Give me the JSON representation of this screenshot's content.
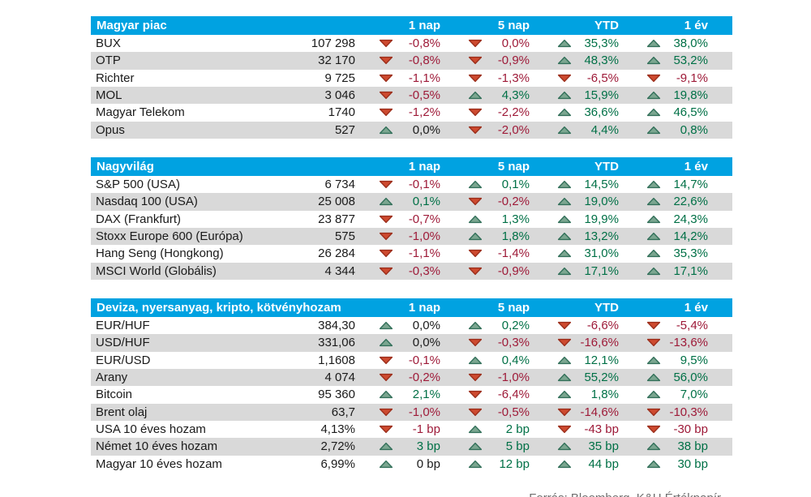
{
  "columns": [
    "1 nap",
    "5 nap",
    "YTD",
    "1 év"
  ],
  "colors": {
    "header_bg": "#00A2E1",
    "row_alt_bg": "#D9D9D9",
    "positive_text": "#007046",
    "negative_text": "#9E1A38",
    "neutral_text": "#1A1A1A",
    "triangle_up_fill": "#7BA690",
    "triangle_up_stroke": "#33705A",
    "triangle_down_fill": "#CE4A2F",
    "triangle_down_stroke": "#9C2E1B",
    "footer_text": "#6E6E6E"
  },
  "tables": [
    {
      "title": "Magyar piac",
      "rows": [
        {
          "name": "BUX",
          "value": "107 298",
          "changes": [
            {
              "dir": "down",
              "text": "-0,8%",
              "tone": "neg"
            },
            {
              "dir": "down",
              "text": "0,0%",
              "tone": "neg"
            },
            {
              "dir": "up",
              "text": "35,3%",
              "tone": "pos"
            },
            {
              "dir": "up",
              "text": "38,0%",
              "tone": "pos"
            }
          ]
        },
        {
          "name": "OTP",
          "value": "32 170",
          "changes": [
            {
              "dir": "down",
              "text": "-0,8%",
              "tone": "neg"
            },
            {
              "dir": "down",
              "text": "-0,9%",
              "tone": "neg"
            },
            {
              "dir": "up",
              "text": "48,3%",
              "tone": "pos"
            },
            {
              "dir": "up",
              "text": "53,2%",
              "tone": "pos"
            }
          ]
        },
        {
          "name": "Richter",
          "value": "9 725",
          "changes": [
            {
              "dir": "down",
              "text": "-1,1%",
              "tone": "neg"
            },
            {
              "dir": "down",
              "text": "-1,3%",
              "tone": "neg"
            },
            {
              "dir": "down",
              "text": "-6,5%",
              "tone": "neg"
            },
            {
              "dir": "down",
              "text": "-9,1%",
              "tone": "neg"
            }
          ]
        },
        {
          "name": "MOL",
          "value": "3 046",
          "changes": [
            {
              "dir": "down",
              "text": "-0,5%",
              "tone": "neg"
            },
            {
              "dir": "up",
              "text": "4,3%",
              "tone": "pos"
            },
            {
              "dir": "up",
              "text": "15,9%",
              "tone": "pos"
            },
            {
              "dir": "up",
              "text": "19,8%",
              "tone": "pos"
            }
          ]
        },
        {
          "name": "Magyar Telekom",
          "value": "1740",
          "changes": [
            {
              "dir": "down",
              "text": "-1,2%",
              "tone": "neg"
            },
            {
              "dir": "down",
              "text": "-2,2%",
              "tone": "neg"
            },
            {
              "dir": "up",
              "text": "36,6%",
              "tone": "pos"
            },
            {
              "dir": "up",
              "text": "46,5%",
              "tone": "pos"
            }
          ]
        },
        {
          "name": "Opus",
          "value": "527",
          "changes": [
            {
              "dir": "up",
              "text": "0,0%",
              "tone": "neutral"
            },
            {
              "dir": "down",
              "text": "-2,0%",
              "tone": "neg"
            },
            {
              "dir": "up",
              "text": "4,4%",
              "tone": "pos"
            },
            {
              "dir": "up",
              "text": "0,8%",
              "tone": "pos"
            }
          ]
        }
      ]
    },
    {
      "title": "Nagyvilág",
      "rows": [
        {
          "name": "S&P 500 (USA)",
          "value": "6 734",
          "changes": [
            {
              "dir": "down",
              "text": "-0,1%",
              "tone": "neg"
            },
            {
              "dir": "up",
              "text": "0,1%",
              "tone": "pos"
            },
            {
              "dir": "up",
              "text": "14,5%",
              "tone": "pos"
            },
            {
              "dir": "up",
              "text": "14,7%",
              "tone": "pos"
            }
          ]
        },
        {
          "name": "Nasdaq 100 (USA)",
          "value": "25 008",
          "changes": [
            {
              "dir": "up",
              "text": "0,1%",
              "tone": "pos"
            },
            {
              "dir": "down",
              "text": "-0,2%",
              "tone": "neg"
            },
            {
              "dir": "up",
              "text": "19,0%",
              "tone": "pos"
            },
            {
              "dir": "up",
              "text": "22,6%",
              "tone": "pos"
            }
          ]
        },
        {
          "name": "DAX (Frankfurt)",
          "value": "23 877",
          "changes": [
            {
              "dir": "down",
              "text": "-0,7%",
              "tone": "neg"
            },
            {
              "dir": "up",
              "text": "1,3%",
              "tone": "pos"
            },
            {
              "dir": "up",
              "text": "19,9%",
              "tone": "pos"
            },
            {
              "dir": "up",
              "text": "24,3%",
              "tone": "pos"
            }
          ]
        },
        {
          "name": "Stoxx Europe 600 (Európa)",
          "value": "575",
          "changes": [
            {
              "dir": "down",
              "text": "-1,0%",
              "tone": "neg"
            },
            {
              "dir": "up",
              "text": "1,8%",
              "tone": "pos"
            },
            {
              "dir": "up",
              "text": "13,2%",
              "tone": "pos"
            },
            {
              "dir": "up",
              "text": "14,2%",
              "tone": "pos"
            }
          ]
        },
        {
          "name": "Hang Seng (Hongkong)",
          "value": "26 284",
          "changes": [
            {
              "dir": "down",
              "text": "-1,1%",
              "tone": "neg"
            },
            {
              "dir": "down",
              "text": "-1,4%",
              "tone": "neg"
            },
            {
              "dir": "up",
              "text": "31,0%",
              "tone": "pos"
            },
            {
              "dir": "up",
              "text": "35,3%",
              "tone": "pos"
            }
          ]
        },
        {
          "name": "MSCI World (Globális)",
          "value": "4 344",
          "changes": [
            {
              "dir": "down",
              "text": "-0,3%",
              "tone": "neg"
            },
            {
              "dir": "down",
              "text": "-0,9%",
              "tone": "neg"
            },
            {
              "dir": "up",
              "text": "17,1%",
              "tone": "pos"
            },
            {
              "dir": "up",
              "text": "17,1%",
              "tone": "pos"
            }
          ]
        }
      ]
    },
    {
      "title": "Deviza, nyersanyag, kripto, kötvényhozam",
      "rows": [
        {
          "name": "EUR/HUF",
          "value": "384,30",
          "changes": [
            {
              "dir": "up",
              "text": "0,0%",
              "tone": "neutral"
            },
            {
              "dir": "up",
              "text": "0,2%",
              "tone": "pos"
            },
            {
              "dir": "down",
              "text": "-6,6%",
              "tone": "neg"
            },
            {
              "dir": "down",
              "text": "-5,4%",
              "tone": "neg"
            }
          ]
        },
        {
          "name": "USD/HUF",
          "value": "331,06",
          "changes": [
            {
              "dir": "up",
              "text": "0,0%",
              "tone": "neutral"
            },
            {
              "dir": "down",
              "text": "-0,3%",
              "tone": "neg"
            },
            {
              "dir": "down",
              "text": "-16,6%",
              "tone": "neg"
            },
            {
              "dir": "down",
              "text": "-13,6%",
              "tone": "neg"
            }
          ]
        },
        {
          "name": "EUR/USD",
          "value": "1,1608",
          "changes": [
            {
              "dir": "down",
              "text": "-0,1%",
              "tone": "neg"
            },
            {
              "dir": "up",
              "text": "0,4%",
              "tone": "pos"
            },
            {
              "dir": "up",
              "text": "12,1%",
              "tone": "pos"
            },
            {
              "dir": "up",
              "text": "9,5%",
              "tone": "pos"
            }
          ]
        },
        {
          "name": "Arany",
          "value": "4 074",
          "changes": [
            {
              "dir": "down",
              "text": "-0,2%",
              "tone": "neg"
            },
            {
              "dir": "down",
              "text": "-1,0%",
              "tone": "neg"
            },
            {
              "dir": "up",
              "text": "55,2%",
              "tone": "pos"
            },
            {
              "dir": "up",
              "text": "56,0%",
              "tone": "pos"
            }
          ]
        },
        {
          "name": "Bitcoin",
          "value": "95 360",
          "changes": [
            {
              "dir": "up",
              "text": "2,1%",
              "tone": "pos"
            },
            {
              "dir": "down",
              "text": "-6,4%",
              "tone": "neg"
            },
            {
              "dir": "up",
              "text": "1,8%",
              "tone": "pos"
            },
            {
              "dir": "up",
              "text": "7,0%",
              "tone": "pos"
            }
          ]
        },
        {
          "name": "Brent olaj",
          "value": "63,7",
          "changes": [
            {
              "dir": "down",
              "text": "-1,0%",
              "tone": "neg"
            },
            {
              "dir": "down",
              "text": "-0,5%",
              "tone": "neg"
            },
            {
              "dir": "down",
              "text": "-14,6%",
              "tone": "neg"
            },
            {
              "dir": "down",
              "text": "-10,3%",
              "tone": "neg"
            }
          ]
        },
        {
          "name": "USA 10 éves hozam",
          "value": "4,13%",
          "changes": [
            {
              "dir": "down",
              "text": "-1 bp",
              "tone": "neg"
            },
            {
              "dir": "up",
              "text": "2 bp",
              "tone": "pos"
            },
            {
              "dir": "down",
              "text": "-43 bp",
              "tone": "neg"
            },
            {
              "dir": "down",
              "text": "-30 bp",
              "tone": "neg"
            }
          ]
        },
        {
          "name": "Német 10 éves hozam",
          "value": "2,72%",
          "changes": [
            {
              "dir": "up",
              "text": "3 bp",
              "tone": "pos"
            },
            {
              "dir": "up",
              "text": "5 bp",
              "tone": "pos"
            },
            {
              "dir": "up",
              "text": "35 bp",
              "tone": "pos"
            },
            {
              "dir": "up",
              "text": "38 bp",
              "tone": "pos"
            }
          ]
        },
        {
          "name": "Magyar 10 éves hozam",
          "value": "6,99%",
          "changes": [
            {
              "dir": "up",
              "text": "0 bp",
              "tone": "neutral"
            },
            {
              "dir": "up",
              "text": "12 bp",
              "tone": "pos"
            },
            {
              "dir": "up",
              "text": "44 bp",
              "tone": "pos"
            },
            {
              "dir": "up",
              "text": "30 bp",
              "tone": "pos"
            }
          ]
        }
      ]
    }
  ],
  "footer": "Forrás: Bloomberg, K&H Értékpapír"
}
